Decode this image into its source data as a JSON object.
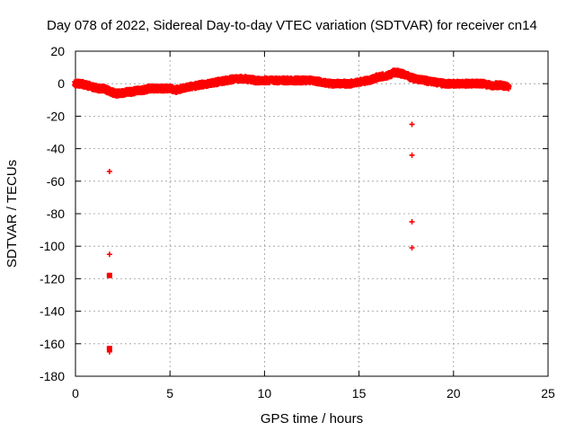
{
  "chart_data": {
    "type": "scatter",
    "title": "Day 078 of 2022, Sidereal Day-to-day VTEC variation (SDTVAR) for receiver cn14",
    "xlabel": "GPS time / hours",
    "ylabel": "SDTVAR / TECUs",
    "xlim": [
      0,
      25
    ],
    "ylim": [
      -180,
      20
    ],
    "xticks": [
      0,
      5,
      10,
      15,
      20,
      25
    ],
    "yticks": [
      20,
      0,
      -20,
      -40,
      -60,
      -80,
      -100,
      -120,
      -140,
      -160,
      -180
    ],
    "grid": true,
    "marker": "+",
    "color": "#ff0000",
    "series": [
      {
        "name": "cn14",
        "trend": {
          "x": [
            0.0,
            0.3,
            0.6,
            0.9,
            1.2,
            1.5,
            1.7,
            1.9,
            2.1,
            2.4,
            2.7,
            3.0,
            3.3,
            3.6,
            3.9,
            4.2,
            4.5,
            4.8,
            5.0,
            5.3,
            5.6,
            6.0,
            6.5,
            7.0,
            7.5,
            8.0,
            8.5,
            9.0,
            9.5,
            10.0,
            10.5,
            11.0,
            11.5,
            12.0,
            12.5,
            13.0,
            13.5,
            14.0,
            14.5,
            15.0,
            15.5,
            16.0,
            16.5,
            16.9,
            17.3,
            17.7,
            18.0,
            18.5,
            19.0,
            19.5,
            20.0,
            20.5,
            21.0,
            21.5,
            22.0,
            22.5,
            22.9
          ],
          "y": [
            0,
            0,
            -1,
            -2,
            -3,
            -3,
            -4,
            -5,
            -6,
            -6,
            -5,
            -5,
            -4,
            -4,
            -3,
            -3,
            -3,
            -3,
            -3,
            -4,
            -3,
            -2,
            -1,
            0,
            1,
            2,
            3,
            3,
            2,
            2,
            2,
            2,
            2,
            2,
            2,
            1,
            0,
            0,
            0,
            1,
            2,
            4,
            5,
            7,
            6,
            4,
            3,
            2,
            1,
            0,
            0,
            0,
            0,
            0,
            -1,
            -1,
            -2
          ]
        },
        "outliers": {
          "x": [
            1.8,
            1.8,
            1.8,
            1.8,
            1.8,
            17.8,
            17.8,
            17.8,
            17.8
          ],
          "y": [
            -54,
            -105,
            -118,
            -163,
            -165,
            -25,
            -44,
            -85,
            -101
          ]
        }
      }
    ]
  }
}
